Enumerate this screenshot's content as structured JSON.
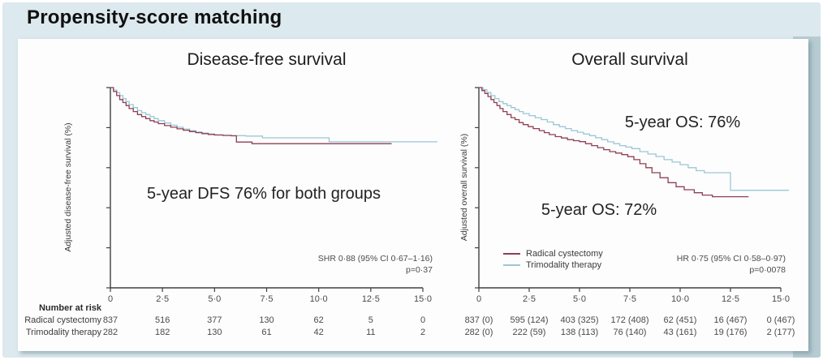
{
  "title": "Propensity-score matching",
  "colors": {
    "radical_cystectomy": "#8e3f54",
    "trimodality_therapy": "#9cc7d4",
    "axis": "#404040",
    "background": "#dce9ee",
    "panel": "#fdfdfd",
    "right_strip": "#b7cbd2"
  },
  "risk_table": {
    "header": "Number at risk",
    "row_labels": [
      "Radical cystectomy",
      "Trimodality therapy"
    ]
  },
  "chart_data": [
    {
      "type": "line",
      "title": "Disease-free survival",
      "ylabel": "Adjusted disease-free survival (%)",
      "xlim": [
        0,
        15
      ],
      "ylim": [
        0,
        100
      ],
      "ytick_step": 20,
      "ytick_labels_shown": false,
      "grid": false,
      "xticks": [
        "0",
        "2·5",
        "5·0",
        "7·5",
        "10·0",
        "12·5",
        "15·0"
      ],
      "annotation": "5-year DFS 76% for both groups",
      "stats_line1": "SHR 0·88 (95% CI 0·67–1·16)",
      "stats_line2": "p=0·37",
      "series": [
        {
          "name": "Trimodality therapy",
          "color": "#9cc7d4",
          "points": [
            [
              0,
              100
            ],
            [
              0.15,
              98.8
            ],
            [
              0.3,
              97.5
            ],
            [
              0.45,
              96
            ],
            [
              0.6,
              94.5
            ],
            [
              0.75,
              93
            ],
            [
              0.9,
              91.5
            ],
            [
              1.1,
              90
            ],
            [
              1.3,
              88.5
            ],
            [
              1.5,
              87.5
            ],
            [
              1.7,
              86.5
            ],
            [
              1.9,
              85.5
            ],
            [
              2.1,
              84.5
            ],
            [
              2.3,
              83.5
            ],
            [
              2.6,
              82.3
            ],
            [
              2.9,
              81.2
            ],
            [
              3.2,
              80.2
            ],
            [
              3.5,
              79.3
            ],
            [
              3.8,
              78.5
            ],
            [
              4.1,
              77.8
            ],
            [
              4.4,
              77.3
            ],
            [
              4.7,
              76.8
            ],
            [
              5,
              76.4
            ],
            [
              5.4,
              76.1
            ],
            [
              5.8,
              76
            ],
            [
              6.5,
              75.8
            ],
            [
              7.3,
              74.9
            ],
            [
              10.5,
              72.9
            ],
            [
              15.7,
              72.9
            ]
          ]
        },
        {
          "name": "Radical cystectomy",
          "color": "#8e3f54",
          "points": [
            [
              0,
              100
            ],
            [
              0.15,
              98
            ],
            [
              0.3,
              96
            ],
            [
              0.45,
              94
            ],
            [
              0.6,
              92.5
            ],
            [
              0.75,
              91
            ],
            [
              0.9,
              89.5
            ],
            [
              1.1,
              88
            ],
            [
              1.3,
              86.5
            ],
            [
              1.5,
              85.5
            ],
            [
              1.7,
              84.5
            ],
            [
              1.9,
              83.5
            ],
            [
              2.1,
              82.8
            ],
            [
              2.3,
              82
            ],
            [
              2.6,
              81
            ],
            [
              2.9,
              80.2
            ],
            [
              3.2,
              79.4
            ],
            [
              3.5,
              78.7
            ],
            [
              3.8,
              78
            ],
            [
              4.1,
              77.5
            ],
            [
              4.4,
              77
            ],
            [
              4.7,
              76.6
            ],
            [
              5,
              76.3
            ],
            [
              5.4,
              76.1
            ],
            [
              5.8,
              75.9
            ],
            [
              6.05,
              72.8
            ],
            [
              6.8,
              72
            ],
            [
              13.5,
              72
            ]
          ]
        }
      ],
      "number_at_risk": [
        [
          "837",
          "516",
          "377",
          "130",
          "62",
          "5",
          "0"
        ],
        [
          "282",
          "182",
          "130",
          "61",
          "42",
          "11",
          "2"
        ]
      ]
    },
    {
      "type": "line",
      "title": "Overall survival",
      "ylabel": "Adjusted overall survival (%)",
      "xlim": [
        0,
        15
      ],
      "ylim": [
        0,
        100
      ],
      "ytick_step": 20,
      "ytick_labels_shown": false,
      "grid": false,
      "xticks": [
        "0",
        "2·5",
        "5·0",
        "7·5",
        "10·0",
        "12·5",
        "15·0"
      ],
      "annotation_top": "5-year OS: 76%",
      "annotation_bottom": "5-year OS: 72%",
      "stats_line1": "HR 0·75 (95% CI 0·58–0·97)",
      "stats_line2": "p=0·0078",
      "legend_position": "lower-left",
      "series": [
        {
          "name": "Trimodality therapy",
          "color": "#9cc7d4",
          "points": [
            [
              0,
              100
            ],
            [
              0.2,
              99
            ],
            [
              0.4,
              97.5
            ],
            [
              0.6,
              96
            ],
            [
              0.8,
              94.5
            ],
            [
              1,
              93
            ],
            [
              1.2,
              92
            ],
            [
              1.4,
              91
            ],
            [
              1.6,
              90
            ],
            [
              1.8,
              89
            ],
            [
              2,
              88
            ],
            [
              2.2,
              87
            ],
            [
              2.5,
              86
            ],
            [
              2.8,
              85
            ],
            [
              3.1,
              84
            ],
            [
              3.4,
              82.8
            ],
            [
              3.7,
              81.5
            ],
            [
              4,
              80.5
            ],
            [
              4.3,
              79.5
            ],
            [
              4.6,
              78.5
            ],
            [
              4.9,
              77.7
            ],
            [
              5.2,
              76.8
            ],
            [
              5.5,
              76
            ],
            [
              5.8,
              75
            ],
            [
              6.1,
              74
            ],
            [
              6.4,
              72.9
            ],
            [
              6.7,
              72
            ],
            [
              7,
              71
            ],
            [
              7.3,
              70.3
            ],
            [
              7.6,
              69.5
            ],
            [
              8,
              68
            ],
            [
              8.4,
              66.8
            ],
            [
              8.8,
              65.6
            ],
            [
              9.2,
              64
            ],
            [
              9.6,
              62.8
            ],
            [
              10,
              61.5
            ],
            [
              10.4,
              60
            ],
            [
              10.8,
              58.5
            ],
            [
              11.2,
              57.5
            ],
            [
              12.5,
              48.7
            ],
            [
              15.4,
              48.7
            ]
          ]
        },
        {
          "name": "Radical cystectomy",
          "color": "#8e3f54",
          "points": [
            [
              0,
              100
            ],
            [
              0.15,
              98.5
            ],
            [
              0.3,
              97
            ],
            [
              0.45,
              95.5
            ],
            [
              0.6,
              94
            ],
            [
              0.75,
              92.5
            ],
            [
              0.9,
              91
            ],
            [
              1.05,
              89.5
            ],
            [
              1.2,
              88
            ],
            [
              1.4,
              86.5
            ],
            [
              1.6,
              85
            ],
            [
              1.8,
              84
            ],
            [
              2,
              82.5
            ],
            [
              2.2,
              81.5
            ],
            [
              2.45,
              80.5
            ],
            [
              2.7,
              79.5
            ],
            [
              3,
              78.5
            ],
            [
              3.25,
              77.5
            ],
            [
              3.5,
              76.5
            ],
            [
              3.8,
              75.5
            ],
            [
              4.1,
              74.8
            ],
            [
              4.4,
              74
            ],
            [
              4.7,
              73.5
            ],
            [
              5,
              73
            ],
            [
              5.3,
              72
            ],
            [
              5.6,
              71
            ],
            [
              5.9,
              70
            ],
            [
              6.2,
              69
            ],
            [
              6.5,
              68
            ],
            [
              6.8,
              67.3
            ],
            [
              7.1,
              66.5
            ],
            [
              7.4,
              65.5
            ],
            [
              7.7,
              64
            ],
            [
              8,
              62
            ],
            [
              8.3,
              60
            ],
            [
              8.6,
              57.5
            ],
            [
              9,
              55
            ],
            [
              9.4,
              52.5
            ],
            [
              9.8,
              50.5
            ],
            [
              10.2,
              49
            ],
            [
              10.7,
              47.5
            ],
            [
              11.1,
              46.3
            ],
            [
              11.6,
              45.5
            ],
            [
              13.4,
              45.5
            ]
          ]
        }
      ],
      "number_at_risk": [
        [
          "837 (0)",
          "595 (124)",
          "403 (325)",
          "172 (408)",
          "62 (451)",
          "16 (467)",
          "0 (467)"
        ],
        [
          "282 (0)",
          "222 (59)",
          "138 (113)",
          "76 (140)",
          "43 (161)",
          "19 (176)",
          "2 (177)"
        ]
      ]
    }
  ]
}
